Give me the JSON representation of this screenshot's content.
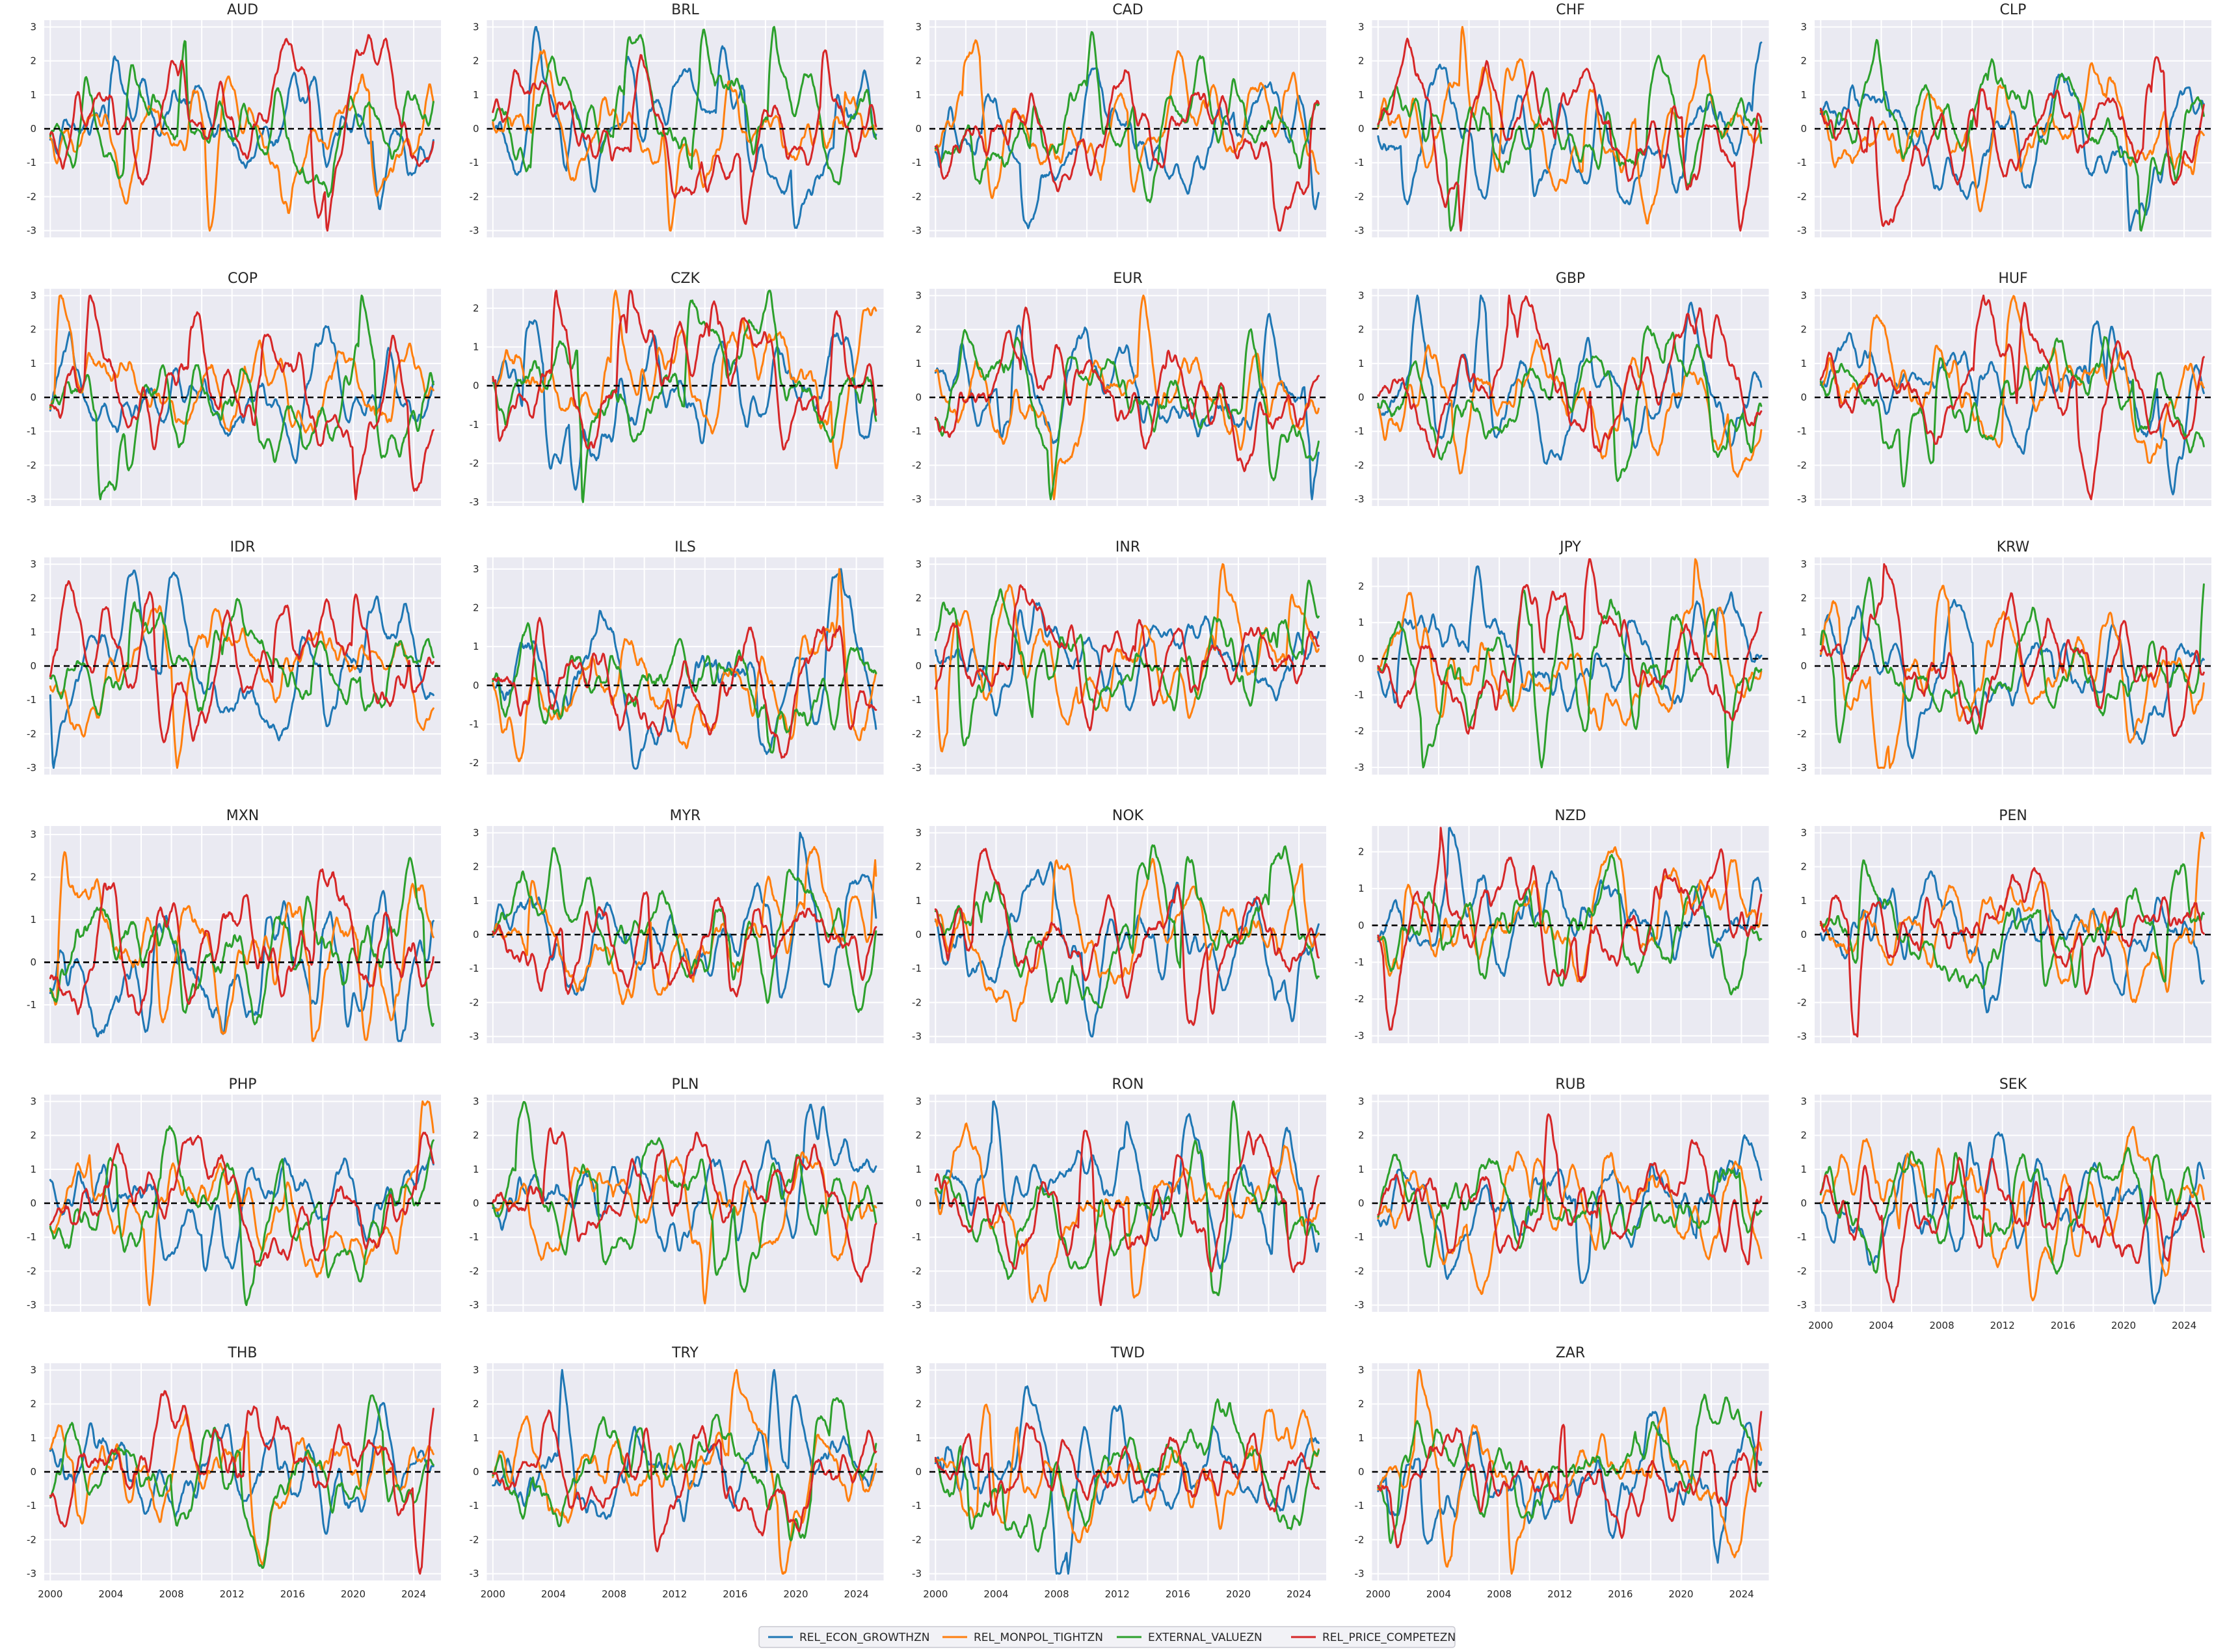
{
  "chart_data": {
    "type": "line",
    "x_ticks": [
      "2000",
      "2004",
      "2008",
      "2012",
      "2016",
      "2020",
      "2024"
    ],
    "x_range": [
      1999.6,
      2025.8
    ],
    "zero_reference": 0,
    "series_names": [
      "REL_ECON_GROWTHZN",
      "REL_MONPOL_TIGHTZN",
      "EXTERNAL_VALUEZN",
      "REL_PRICE_COMPETEZN"
    ],
    "series_colors": [
      "#1f77b4",
      "#ff7f0e",
      "#2ca02c",
      "#d62728"
    ],
    "legend_position": "bottom-center",
    "grid": true,
    "panels": [
      {
        "title": "AUD",
        "ylim": [
          -3.2,
          3.2
        ],
        "yticks": [
          -3,
          -2,
          -1,
          0,
          1,
          2,
          3
        ]
      },
      {
        "title": "BRL",
        "ylim": [
          -3.2,
          3.2
        ],
        "yticks": [
          -3,
          -2,
          -1,
          0,
          1,
          2,
          3
        ]
      },
      {
        "title": "CAD",
        "ylim": [
          -3.2,
          3.2
        ],
        "yticks": [
          -3,
          -2,
          -1,
          0,
          1,
          2,
          3
        ]
      },
      {
        "title": "CHF",
        "ylim": [
          -3.2,
          3.2
        ],
        "yticks": [
          -3,
          -2,
          -1,
          0,
          1,
          2,
          3
        ]
      },
      {
        "title": "CLP",
        "ylim": [
          -3.2,
          3.2
        ],
        "yticks": [
          -3,
          -2,
          -1,
          0,
          1,
          2,
          3
        ]
      },
      {
        "title": "COP",
        "ylim": [
          -3.2,
          3.2
        ],
        "yticks": [
          -3,
          -2,
          -1,
          0,
          1,
          2,
          3
        ]
      },
      {
        "title": "CZK",
        "ylim": [
          -3.1,
          2.5
        ],
        "yticks": [
          -3,
          -2,
          -1,
          0,
          1,
          2
        ]
      },
      {
        "title": "EUR",
        "ylim": [
          -3.2,
          3.2
        ],
        "yticks": [
          -3,
          -2,
          -1,
          0,
          1,
          2,
          3
        ]
      },
      {
        "title": "GBP",
        "ylim": [
          -3.2,
          3.2
        ],
        "yticks": [
          -3,
          -2,
          -1,
          0,
          1,
          2,
          3
        ]
      },
      {
        "title": "HUF",
        "ylim": [
          -3.2,
          3.2
        ],
        "yticks": [
          -3,
          -2,
          -1,
          0,
          1,
          2,
          3
        ]
      },
      {
        "title": "IDR",
        "ylim": [
          -3.2,
          3.2
        ],
        "yticks": [
          -3,
          -2,
          -1,
          0,
          1,
          2,
          3
        ]
      },
      {
        "title": "ILS",
        "ylim": [
          -2.3,
          3.3
        ],
        "yticks": [
          -2,
          -1,
          0,
          1,
          2,
          3
        ]
      },
      {
        "title": "INR",
        "ylim": [
          -3.2,
          3.2
        ],
        "yticks": [
          -3,
          -2,
          -1,
          0,
          1,
          2,
          3
        ]
      },
      {
        "title": "JPY",
        "ylim": [
          -3.2,
          2.8
        ],
        "yticks": [
          -3,
          -2,
          -1,
          0,
          1,
          2
        ]
      },
      {
        "title": "KRW",
        "ylim": [
          -3.2,
          3.2
        ],
        "yticks": [
          -3,
          -2,
          -1,
          0,
          1,
          2,
          3
        ]
      },
      {
        "title": "MXN",
        "ylim": [
          -1.9,
          3.2
        ],
        "yticks": [
          -1,
          0,
          1,
          2,
          3
        ]
      },
      {
        "title": "MYR",
        "ylim": [
          -3.2,
          3.2
        ],
        "yticks": [
          -3,
          -2,
          -1,
          0,
          1,
          2,
          3
        ]
      },
      {
        "title": "NOK",
        "ylim": [
          -3.2,
          3.2
        ],
        "yticks": [
          -3,
          -2,
          -1,
          0,
          1,
          2,
          3
        ]
      },
      {
        "title": "NZD",
        "ylim": [
          -3.2,
          2.7
        ],
        "yticks": [
          -3,
          -2,
          -1,
          0,
          1,
          2
        ]
      },
      {
        "title": "PEN",
        "ylim": [
          -3.2,
          3.2
        ],
        "yticks": [
          -3,
          -2,
          -1,
          0,
          1,
          2,
          3
        ]
      },
      {
        "title": "PHP",
        "ylim": [
          -3.2,
          3.2
        ],
        "yticks": [
          -3,
          -2,
          -1,
          0,
          1,
          2,
          3
        ]
      },
      {
        "title": "PLN",
        "ylim": [
          -3.2,
          3.2
        ],
        "yticks": [
          -3,
          -2,
          -1,
          0,
          1,
          2,
          3
        ]
      },
      {
        "title": "RON",
        "ylim": [
          -3.2,
          3.2
        ],
        "yticks": [
          -3,
          -2,
          -1,
          0,
          1,
          2,
          3
        ]
      },
      {
        "title": "RUB",
        "ylim": [
          -3.2,
          3.2
        ],
        "yticks": [
          -3,
          -2,
          -1,
          0,
          1,
          2,
          3
        ]
      },
      {
        "title": "SEK",
        "ylim": [
          -3.2,
          3.2
        ],
        "yticks": [
          -3,
          -2,
          -1,
          0,
          1,
          2,
          3
        ]
      },
      {
        "title": "THB",
        "ylim": [
          -3.2,
          3.2
        ],
        "yticks": [
          -3,
          -2,
          -1,
          0,
          1,
          2,
          3
        ]
      },
      {
        "title": "TRY",
        "ylim": [
          -3.2,
          3.2
        ],
        "yticks": [
          -3,
          -2,
          -1,
          0,
          1,
          2,
          3
        ]
      },
      {
        "title": "TWD",
        "ylim": [
          -3.2,
          3.2
        ],
        "yticks": [
          -3,
          -2,
          -1,
          0,
          1,
          2,
          3
        ]
      },
      {
        "title": "ZAR",
        "ylim": [
          -3.2,
          3.2
        ],
        "yticks": [
          -3,
          -2,
          -1,
          0,
          1,
          2,
          3
        ]
      }
    ]
  }
}
